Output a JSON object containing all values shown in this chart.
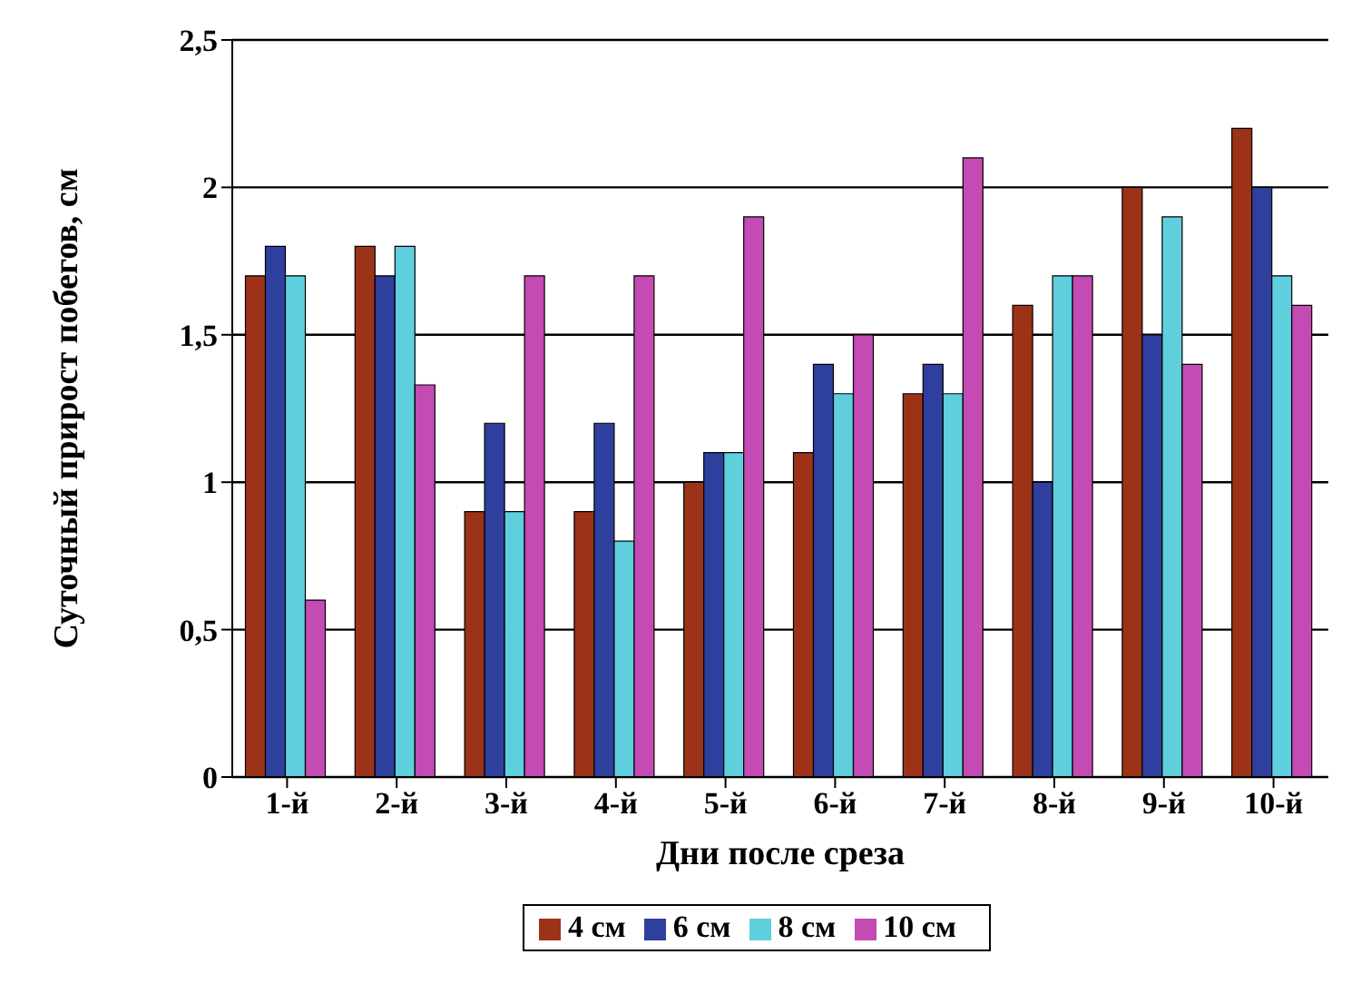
{
  "chart_data": {
    "type": "bar",
    "xlabel": "Дни после среза",
    "ylabel": "Суточный прирост побегов, см",
    "categories": [
      "1-й",
      "2-й",
      "3-й",
      "4-й",
      "5-й",
      "6-й",
      "7-й",
      "8-й",
      "9-й",
      "10-й"
    ],
    "series": [
      {
        "name": "4 см",
        "color": "#9c3318",
        "values": [
          1.7,
          1.8,
          0.9,
          0.9,
          1.0,
          1.1,
          1.3,
          1.6,
          2.0,
          2.2
        ]
      },
      {
        "name": "6 см",
        "color": "#2e3f9e",
        "values": [
          1.8,
          1.7,
          1.2,
          1.2,
          1.1,
          1.4,
          1.4,
          1.0,
          1.5,
          2.0
        ]
      },
      {
        "name": "8 см",
        "color": "#5fcfdd",
        "values": [
          1.7,
          1.8,
          0.9,
          0.8,
          1.1,
          1.3,
          1.3,
          1.7,
          1.9,
          1.7
        ]
      },
      {
        "name": "10 см",
        "color": "#c44ab4",
        "values": [
          0.6,
          1.33,
          1.7,
          1.7,
          1.9,
          1.5,
          2.1,
          1.7,
          1.4,
          1.6
        ]
      }
    ],
    "ylim": [
      0,
      2.5
    ],
    "yticks": [
      0,
      {
        "value": 0.5,
        "label": "0,5"
      },
      1,
      {
        "value": 1.5,
        "label": "1,5"
      },
      2,
      {
        "value": 2.5,
        "label": "2,5"
      }
    ],
    "grid": "y",
    "legend": "bottom"
  }
}
